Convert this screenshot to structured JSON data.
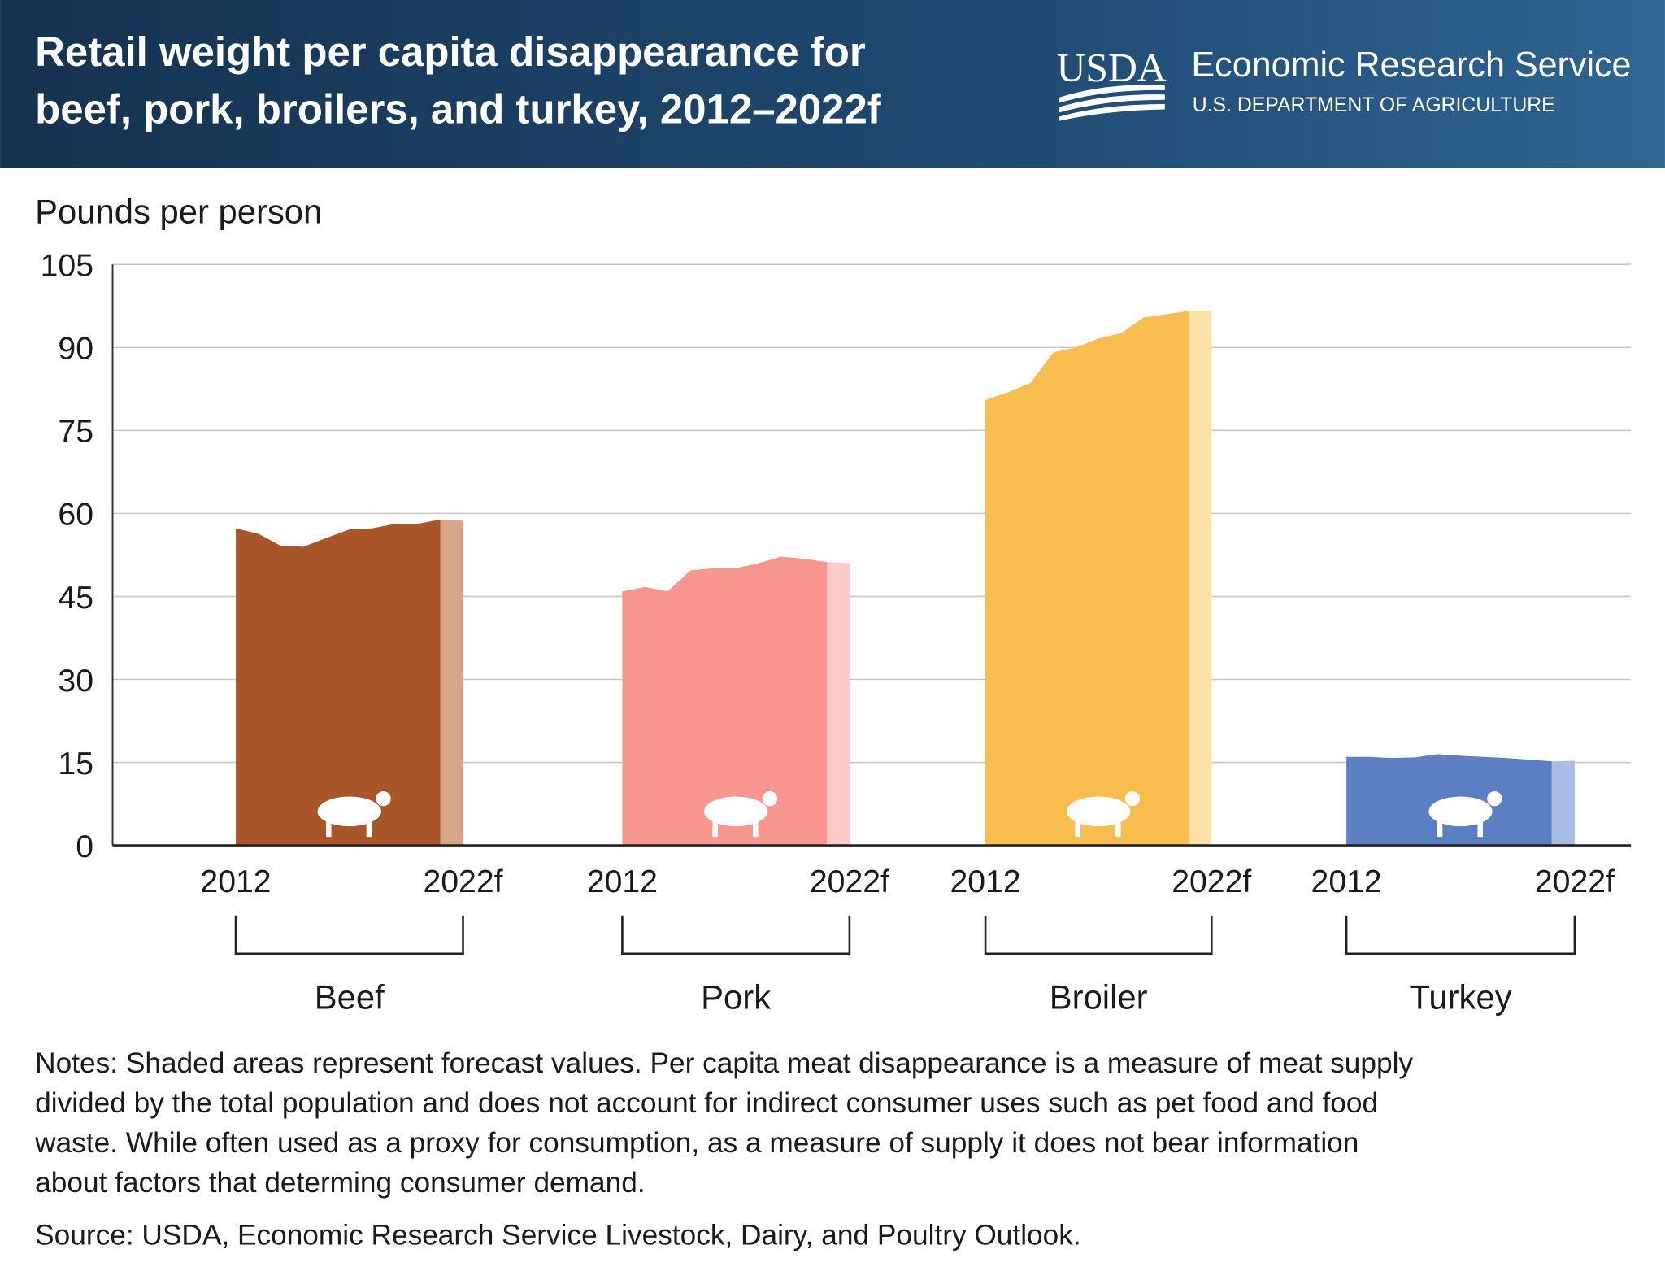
{
  "header": {
    "title_lines": [
      "Retail weight per capita disappearance for",
      "beef, pork, broilers, and turkey, 2012–2022f"
    ],
    "logo": "USDA",
    "agency": "Economic Research Service",
    "department": "U.S. DEPARTMENT OF AGRICULTURE"
  },
  "chart_data": {
    "type": "area",
    "y_label": "Pounds per person",
    "categories": [
      "2012",
      null,
      null,
      null,
      null,
      null,
      null,
      null,
      null,
      null,
      "2022f"
    ],
    "forecast_start_index": 9,
    "ylim": [
      0,
      105
    ],
    "yticks": [
      0,
      15,
      30,
      45,
      60,
      75,
      90,
      105
    ],
    "grid": true,
    "series": [
      {
        "name": "Beef",
        "color": "#a8552a",
        "forecast_color": "#d6a689",
        "values": [
          57.3,
          56.3,
          54.1,
          54.0,
          55.6,
          57.1,
          57.3,
          58.1,
          58.1,
          58.9,
          58.7
        ]
      },
      {
        "name": "Pork",
        "color": "#f6968f",
        "forecast_color": "#fccbc7",
        "values": [
          45.9,
          46.7,
          45.9,
          49.7,
          50.1,
          50.1,
          51.0,
          52.2,
          51.8,
          51.2,
          51.0
        ]
      },
      {
        "name": "Broiler",
        "color": "#f9bc4f",
        "forecast_color": "#fde0a8",
        "values": [
          80.5,
          81.9,
          83.6,
          89.1,
          90.0,
          91.6,
          92.6,
          95.4,
          96.0,
          96.6,
          96.6
        ]
      },
      {
        "name": "Turkey",
        "color": "#5b7fc2",
        "forecast_color": "#a9bde2",
        "values": [
          16.0,
          16.0,
          15.8,
          15.9,
          16.5,
          16.2,
          16.0,
          15.8,
          15.5,
          15.2,
          15.3
        ]
      }
    ],
    "notes": [
      "Notes: Shaded areas represent forecast values. Per capita meat disappearance is a measure of meat supply",
      "divided by the total population and does not account for indirect consumer uses such as pet food and food",
      "waste. While often used as a proxy for consumption, as a measure of supply it does not bear information",
      "about factors that determing consumer demand."
    ],
    "source": "Source: USDA, Economic Research Service Livestock, Dairy, and Poultry Outlook."
  }
}
